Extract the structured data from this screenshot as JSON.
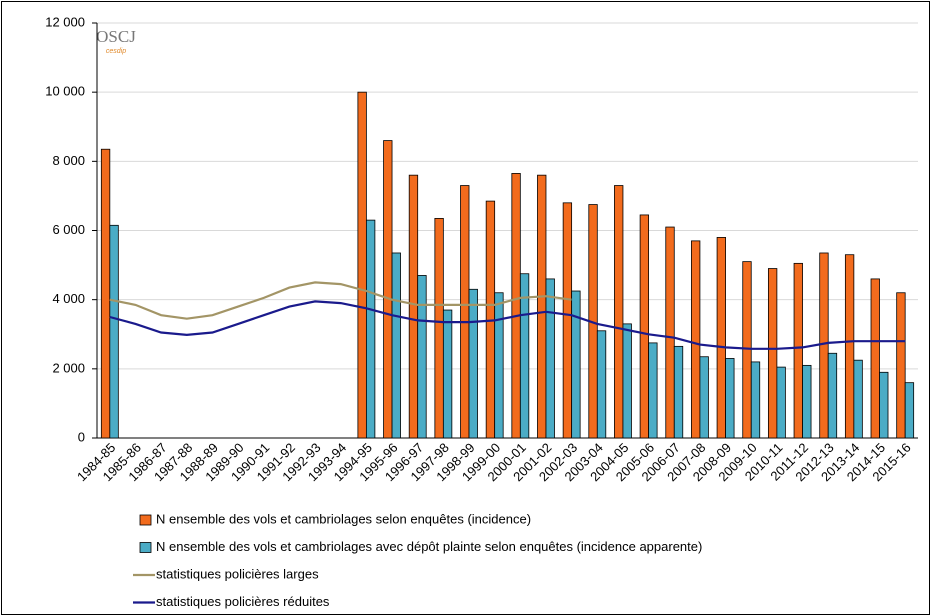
{
  "chart_data": {
    "type": "bar",
    "logo": "OSCJ",
    "logo_sub": "cesdip",
    "categories": [
      "1984-85",
      "1985-86",
      "1986-87",
      "1987-88",
      "1988-89",
      "1989-90",
      "1990-91",
      "1991-92",
      "1992-93",
      "1993-94",
      "1994-95",
      "1995-96",
      "1996-97",
      "1997-98",
      "1998-99",
      "1999-00",
      "2000-01",
      "2001-02",
      "2002-03",
      "2003-04",
      "2004-05",
      "2005-06",
      "2006-07",
      "2007-08",
      "2008-09",
      "2009-10",
      "2010-11",
      "2011-12",
      "2012-13",
      "2013-14",
      "2014-15",
      "2015-16"
    ],
    "series": [
      {
        "name": "N ensemble des vols et cambriolages selon enquêtes (incidence)",
        "type": "bar",
        "color": "#f26b1d",
        "values": [
          8350,
          null,
          null,
          null,
          null,
          null,
          null,
          null,
          null,
          null,
          10000,
          8600,
          7600,
          6350,
          7300,
          6850,
          7650,
          7600,
          6800,
          6750,
          7300,
          6450,
          6100,
          5700,
          5800,
          5100,
          4900,
          5050,
          5350,
          5300,
          4600,
          4200
        ]
      },
      {
        "name": "N ensemble des vols et cambriolages avec dépôt plainte selon enquêtes (incidence apparente)",
        "type": "bar",
        "color": "#4bacc6",
        "values": [
          6150,
          null,
          null,
          null,
          null,
          null,
          null,
          null,
          null,
          null,
          6300,
          5350,
          4700,
          3700,
          4300,
          4200,
          4750,
          4600,
          4250,
          3100,
          3300,
          2750,
          2650,
          2350,
          2300,
          2200,
          2050,
          2100,
          2450,
          2250,
          1900,
          1600
        ]
      },
      {
        "name": "statistiques policières larges",
        "type": "line",
        "color": "#a39566",
        "values": [
          4000,
          3850,
          3550,
          3450,
          3550,
          3800,
          4050,
          4350,
          4500,
          4450,
          4250,
          4000,
          3850,
          3850,
          3850,
          3850,
          4050,
          4100,
          4000,
          null,
          null,
          null,
          null,
          null,
          null,
          null,
          null,
          null,
          null,
          null,
          null,
          null
        ]
      },
      {
        "name": "statistiques policières réduites",
        "type": "line",
        "color": "#1a1a8c",
        "values": [
          3500,
          3300,
          3050,
          2980,
          3050,
          3300,
          3550,
          3800,
          3950,
          3900,
          3750,
          3550,
          3400,
          3350,
          3350,
          3400,
          3550,
          3650,
          3550,
          3300,
          3150,
          3000,
          2900,
          2700,
          2620,
          2580,
          2580,
          2620,
          2750,
          2800,
          2800,
          2800
        ]
      }
    ],
    "ylim": [
      0,
      12000
    ],
    "yticks": [
      0,
      {
        "value": 2000,
        "label": "2 000"
      },
      {
        "value": 4000,
        "label": "4 000"
      },
      {
        "value": 6000,
        "label": "6 000"
      },
      {
        "value": 8000,
        "label": "8 000"
      },
      {
        "value": 10000,
        "label": "10 000"
      },
      {
        "value": 12000,
        "label": "12 000"
      }
    ],
    "grid": true
  }
}
